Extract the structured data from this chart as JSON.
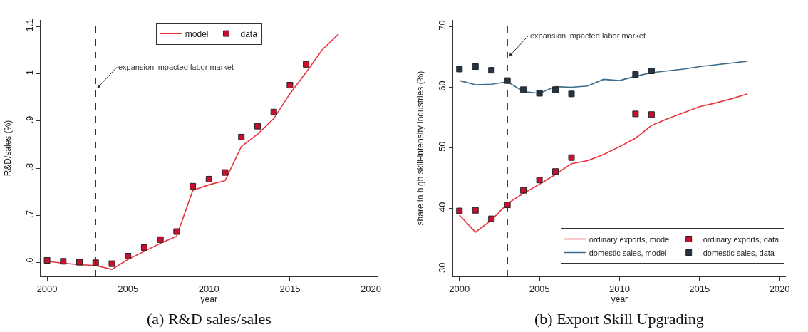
{
  "chart_data": [
    {
      "type": "line",
      "title": "(a) R&D sales/sales",
      "xlabel": "year",
      "ylabel": "R&D/sales (%)",
      "xlim": [
        1999.6,
        2020.4
      ],
      "xticks": [
        2000,
        2005,
        2010,
        2015,
        2020
      ],
      "ylim": [
        0.571,
        1.114
      ],
      "yticks": [
        {
          "value": 0.6,
          "label": ".6"
        },
        {
          "value": 0.7,
          "label": ".7"
        },
        {
          "value": 0.8,
          "label": ".8"
        },
        {
          "value": 0.9,
          "label": ".9"
        },
        1,
        1.1
      ],
      "grid": false,
      "legend": "top",
      "series": [
        {
          "name": "model",
          "color": "#e8323c",
          "line_style": "solid",
          "marker": "none",
          "x": [
            2000,
            2001,
            2002,
            2003,
            2004,
            2005,
            2006,
            2007,
            2008,
            2009,
            2010,
            2011,
            2012,
            2013,
            2014,
            2015,
            2016,
            2017,
            2018
          ],
          "values": [
            0.603,
            0.599,
            0.596,
            0.594,
            0.586,
            0.607,
            0.624,
            0.641,
            0.656,
            0.753,
            0.765,
            0.774,
            0.846,
            0.872,
            0.905,
            0.958,
            1.003,
            1.051,
            1.084
          ]
        },
        {
          "name": "data",
          "type": "scatter",
          "color": "#c8102e",
          "marker": "square",
          "x": [
            2000,
            2001,
            2002,
            2003,
            2004,
            2005,
            2006,
            2007,
            2008,
            2009,
            2010,
            2011,
            2012,
            2013,
            2014,
            2015,
            2016
          ],
          "values": [
            0.605,
            0.603,
            0.601,
            0.6,
            0.598,
            0.614,
            0.632,
            0.649,
            0.666,
            0.762,
            0.777,
            0.791,
            0.866,
            0.889,
            0.919,
            0.976,
            1.02
          ]
        }
      ],
      "ref_lines": [
        {
          "axis": "x",
          "value": 2003,
          "color": "#333333",
          "line_style": "dashed"
        }
      ],
      "annotations": [
        {
          "text": "expansion impacted labor market",
          "x": 2003,
          "y": 0.966
        }
      ]
    },
    {
      "type": "line",
      "title": "(b) Export Skill Upgrading",
      "xlabel": "year",
      "ylabel": "share in high skill-intensity industries (%)",
      "xlim": [
        1999.6,
        2020.4
      ],
      "xticks": [
        2000,
        2005,
        2010,
        2015,
        2020
      ],
      "ylim": [
        28.8,
        71.1
      ],
      "yticks": [
        30,
        40,
        50,
        60,
        70
      ],
      "grid": false,
      "legend": "bottom right",
      "series": [
        {
          "name": "ordinary exports, model",
          "color": "#e8323c",
          "line_style": "solid",
          "marker": "none",
          "x": [
            2000,
            2001,
            2002,
            2003,
            2004,
            2005,
            2006,
            2007,
            2008,
            2009,
            2010,
            2011,
            2012,
            2013,
            2014,
            2015,
            2016,
            2017,
            2018
          ],
          "values": [
            38.9,
            36.1,
            38.1,
            40.8,
            42.5,
            44.0,
            45.6,
            47.4,
            47.9,
            48.9,
            50.2,
            51.6,
            53.7,
            54.8,
            55.8,
            56.8,
            57.4,
            58.1,
            58.9
          ]
        },
        {
          "name": "ordinary exports, data",
          "type": "scatter",
          "color": "#c8102e",
          "marker": "square",
          "x": [
            2000,
            2001,
            2002,
            2003,
            2004,
            2005,
            2006,
            2007,
            2011,
            2012
          ],
          "values": [
            39.6,
            39.7,
            38.3,
            40.6,
            43.0,
            44.7,
            46.1,
            48.4,
            55.6,
            55.5
          ]
        },
        {
          "name": "domestic sales, model",
          "color": "#3b6a8a",
          "line_style": "solid",
          "marker": "none",
          "x": [
            2000,
            2001,
            2002,
            2003,
            2004,
            2005,
            2006,
            2007,
            2008,
            2009,
            2010,
            2011,
            2012,
            2013,
            2014,
            2015,
            2016,
            2017,
            2018
          ],
          "values": [
            61.1,
            60.4,
            60.5,
            60.9,
            59.3,
            59.0,
            60.1,
            60.0,
            60.2,
            61.3,
            61.1,
            61.8,
            62.4,
            62.7,
            63.0,
            63.4,
            63.7,
            64.0,
            64.3
          ]
        },
        {
          "name": "domestic sales, data",
          "type": "scatter",
          "color": "#243444",
          "marker": "square",
          "x": [
            2000,
            2001,
            2002,
            2003,
            2004,
            2005,
            2006,
            2007,
            2011,
            2012
          ],
          "values": [
            63.0,
            63.4,
            62.8,
            61.1,
            59.6,
            59.0,
            59.6,
            58.9,
            62.1,
            62.7
          ]
        }
      ],
      "ref_lines": [
        {
          "axis": "x",
          "value": 2003,
          "color": "#333333",
          "line_style": "dashed"
        }
      ],
      "annotations": [
        {
          "text": "expansion impacted labor market",
          "x": 2003,
          "y": 64.8
        }
      ]
    }
  ]
}
